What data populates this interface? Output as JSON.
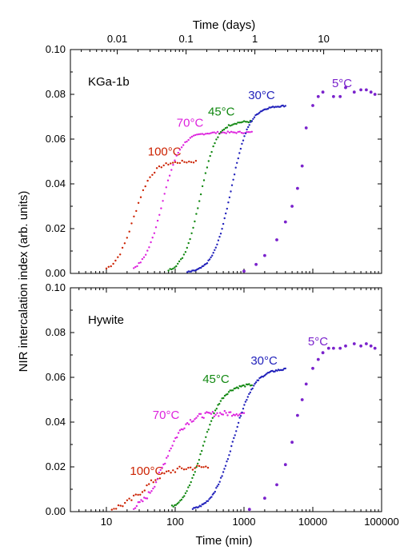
{
  "chart_data": [
    {
      "type": "scatter",
      "panel_label": "KGa-1b",
      "xscale": "log",
      "xlim": [
        3,
        100000
      ],
      "ylim": [
        0,
        0.1
      ],
      "yticks": [
        "0.00",
        "0.02",
        "0.04",
        "0.06",
        "0.08",
        "0.10"
      ],
      "xlabel_top": "Time (days)",
      "xticks_top": [
        "0.01",
        "0.1",
        "1",
        "10"
      ],
      "xticks_top_values": [
        0.01,
        0.1,
        1,
        10
      ],
      "series": [
        {
          "name": "100°C",
          "label_pos": [
            40,
            0.0527
          ],
          "color": "#cc2200",
          "t50": 25,
          "width": 0.13,
          "plateau": 0.05,
          "tmin": 10,
          "tmax": 200,
          "n": 40,
          "noise": 0.0006
        },
        {
          "name": "70°C",
          "label_pos": [
            105,
            0.0655
          ],
          "color": "#dd22dd",
          "t50": 65,
          "width": 0.13,
          "plateau": 0.063,
          "tmin": 25,
          "tmax": 1300,
          "n": 70,
          "noise": 0.0004
        },
        {
          "name": "45°C",
          "label_pos": [
            300,
            0.0705
          ],
          "color": "#118811",
          "t50": 230,
          "width": 0.12,
          "plateau": 0.068,
          "tmin": 80,
          "tmax": 1300,
          "n": 55,
          "noise": 0.0004
        },
        {
          "name": "30°C",
          "label_pos": [
            1150,
            0.0778
          ],
          "color": "#2222bb",
          "t50": 650,
          "width": 0.13,
          "plateau": 0.075,
          "tmin": 150,
          "tmax": 4000,
          "n": 80,
          "noise": 0.0003
        },
        {
          "name": "5°C",
          "label_pos": [
            19000,
            0.0833
          ],
          "color": "#7a22cc",
          "x": [
            1000,
            1500,
            2000,
            3000,
            4000,
            5000,
            6000,
            7000,
            8000,
            10000,
            12000,
            14000,
            20000,
            25000,
            30000,
            40000,
            50000,
            60000,
            70000,
            80000
          ],
          "y": [
            0.001,
            0.004,
            0.008,
            0.015,
            0.023,
            0.03,
            0.038,
            0.048,
            0.065,
            0.075,
            0.079,
            0.081,
            0.079,
            0.079,
            0.083,
            0.081,
            0.082,
            0.082,
            0.081,
            0.08
          ]
        }
      ]
    },
    {
      "type": "scatter",
      "panel_label": "Hywite",
      "xscale": "log",
      "xlim": [
        3,
        100000
      ],
      "ylim": [
        0,
        0.1
      ],
      "yticks": [
        "0.00",
        "0.02",
        "0.04",
        "0.06",
        "0.08",
        "0.10"
      ],
      "xlabel": "Time (min)",
      "xticks": [
        "10",
        "100",
        "1000",
        "10000",
        "100000"
      ],
      "xticks_values": [
        10,
        100,
        1000,
        10000,
        100000
      ],
      "series": [
        {
          "name": "100°C",
          "label_pos": [
            22,
            0.0165
          ],
          "color": "#cc2200",
          "t50": 35,
          "width": 0.18,
          "plateau": 0.02,
          "tmin": 12,
          "tmax": 300,
          "n": 45,
          "noise": 0.0012
        },
        {
          "name": "70°C",
          "label_pos": [
            47,
            0.0415
          ],
          "color": "#dd22dd",
          "t50": 70,
          "width": 0.15,
          "plateau": 0.044,
          "tmin": 25,
          "tmax": 1000,
          "n": 75,
          "noise": 0.0012
        },
        {
          "name": "45°C",
          "label_pos": [
            250,
            0.0575
          ],
          "color": "#118811",
          "t50": 250,
          "width": 0.14,
          "plateau": 0.057,
          "tmin": 90,
          "tmax": 1300,
          "n": 60,
          "noise": 0.0005
        },
        {
          "name": "30°C",
          "label_pos": [
            1250,
            0.0658
          ],
          "color": "#2222bb",
          "t50": 700,
          "width": 0.15,
          "plateau": 0.064,
          "tmin": 180,
          "tmax": 4000,
          "n": 80,
          "noise": 0.0004
        },
        {
          "name": "5°C",
          "label_pos": [
            8500,
            0.0743
          ],
          "color": "#7a22cc",
          "x": [
            1200,
            2000,
            3000,
            4000,
            5000,
            6000,
            7000,
            8000,
            10000,
            12000,
            14000,
            17000,
            20000,
            25000,
            30000,
            40000,
            50000,
            60000,
            70000,
            80000
          ],
          "y": [
            0.001,
            0.006,
            0.012,
            0.021,
            0.031,
            0.043,
            0.05,
            0.057,
            0.064,
            0.068,
            0.071,
            0.073,
            0.073,
            0.073,
            0.074,
            0.075,
            0.074,
            0.075,
            0.074,
            0.073
          ]
        }
      ]
    }
  ],
  "shared": {
    "ylabel": "NIR intercalation index (arb. units)"
  }
}
